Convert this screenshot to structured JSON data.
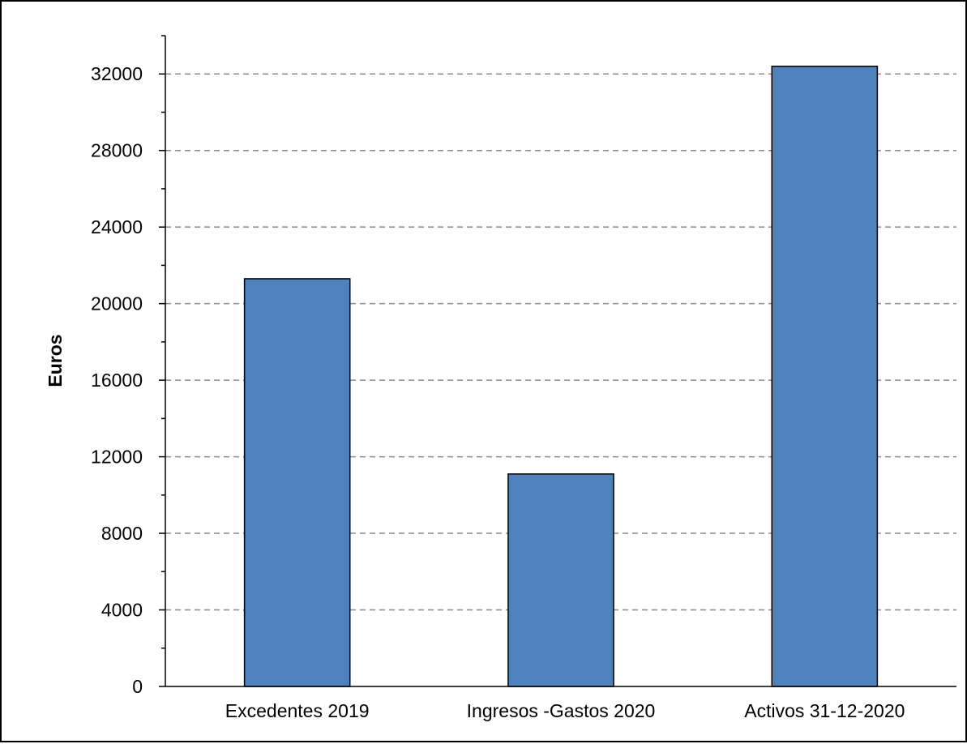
{
  "chart_data": {
    "type": "bar",
    "title": "",
    "xlabel": "",
    "ylabel": "Euros",
    "categories": [
      "Excedentes 2019",
      "Ingresos -Gastos 2020",
      "Activos  31-12-2020"
    ],
    "values": [
      21300,
      11100,
      32400
    ],
    "ylim": [
      0,
      34000
    ],
    "yticks": [
      0,
      4000,
      8000,
      12000,
      16000,
      20000,
      24000,
      28000,
      32000
    ],
    "y_minor_step": 2000,
    "grid": "horizontal dashed",
    "legend": "none",
    "bar_color": "#4f81bd",
    "bar_edge_color": "#000000",
    "grid_color": "#8c8c8c",
    "axis_color": "#000000"
  }
}
